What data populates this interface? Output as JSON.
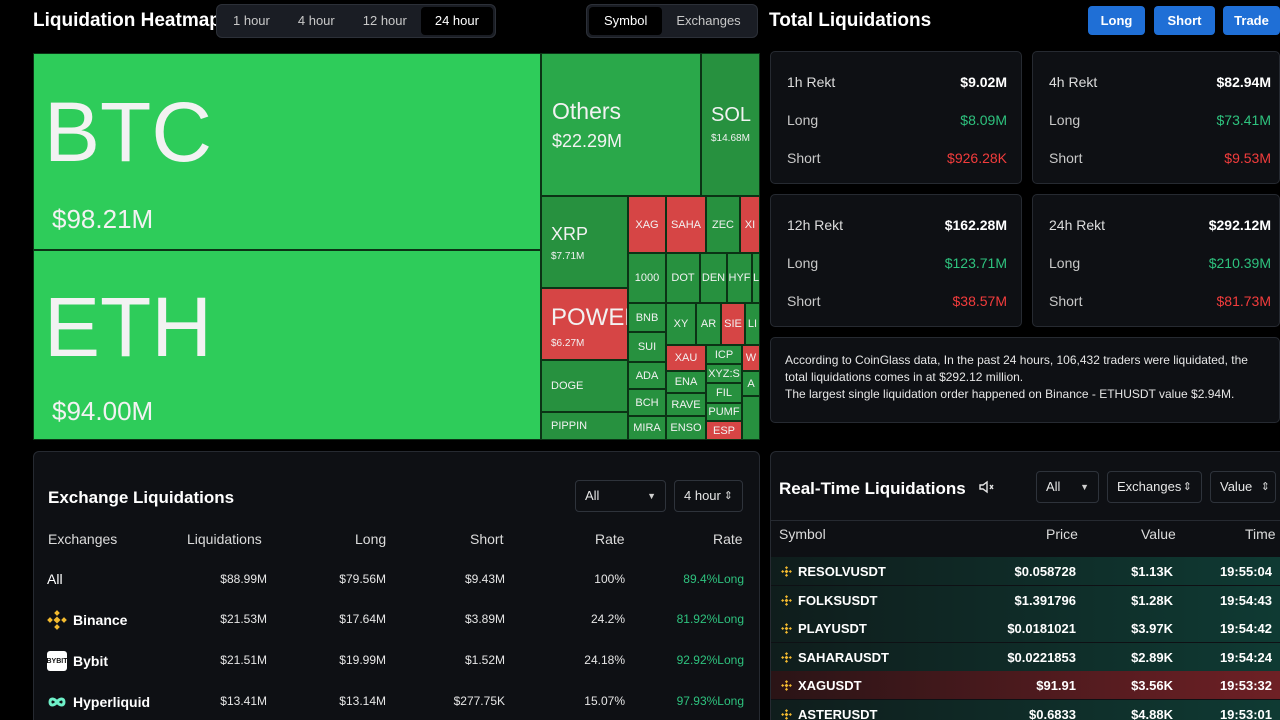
{
  "header": {
    "heatmap_title": "Liquidation Heatmap",
    "time_tabs": [
      "1 hour",
      "4 hour",
      "12 hour",
      "24 hour"
    ],
    "active_time_tab": "24 hour",
    "view_tabs": [
      "Symbol",
      "Exchanges"
    ],
    "active_view_tab": "Symbol",
    "total_title": "Total Liquidations",
    "buttons": [
      "Long",
      "Short",
      "Trade"
    ]
  },
  "heatmap": {
    "btc": {
      "symbol": "BTC",
      "value": "$98.21M"
    },
    "eth": {
      "symbol": "ETH",
      "value": "$94.00M"
    },
    "others": {
      "symbol": "Others",
      "value": "$22.29M"
    },
    "sol": {
      "symbol": "SOL",
      "value": "$14.68M"
    },
    "xrp": {
      "symbol": "XRP",
      "value": "$7.71M"
    },
    "power": {
      "symbol": "POWER",
      "value": "$6.27M"
    },
    "doge": "DOGE",
    "pippin": "PIPPIN",
    "small": [
      "XAG",
      "SAHA",
      "ZEC",
      "XI",
      "1000",
      "DOT",
      "DEN",
      "HYF",
      "L",
      "BNB",
      "XY",
      "AR",
      "SIE",
      "LI",
      "SUI",
      "XAU",
      "ICP",
      "W",
      "ADA",
      "XYZ:S",
      "A",
      "ENA",
      "FIL",
      "BCH",
      "RAVE",
      "PUMF",
      "MIRA",
      "ENSO",
      "ESP"
    ]
  },
  "rekt": [
    {
      "label": "1h Rekt",
      "total": "$9.02M",
      "long_label": "Long",
      "long": "$8.09M",
      "short_label": "Short",
      "short": "$926.28K"
    },
    {
      "label": "4h Rekt",
      "total": "$82.94M",
      "long_label": "Long",
      "long": "$73.41M",
      "short_label": "Short",
      "short": "$9.53M"
    },
    {
      "label": "12h Rekt",
      "total": "$162.28M",
      "long_label": "Long",
      "long": "$123.71M",
      "short_label": "Short",
      "short": "$38.57M"
    },
    {
      "label": "24h Rekt",
      "total": "$292.12M",
      "long_label": "Long",
      "long": "$210.39M",
      "short_label": "Short",
      "short": "$81.73M"
    }
  ],
  "note": {
    "line1": "According to CoinGlass data, In the past 24 hours, 106,432 traders were liquidated, the total liquidations comes in at $292.12 million.",
    "line2": "The largest single liquidation order happened on Binance - ETHUSDT value $2.94M."
  },
  "exchange": {
    "title": "Exchange Liquidations",
    "filter": "All",
    "period": "4 hour",
    "columns": [
      "Exchanges",
      "Liquidations",
      "Long",
      "Short",
      "Rate",
      "Rate"
    ],
    "rows": [
      {
        "name": "All",
        "liq": "$88.99M",
        "long": "$79.56M",
        "short": "$9.43M",
        "rate": "100%",
        "rate2": "89.4%Long"
      },
      {
        "name": "Binance",
        "liq": "$21.53M",
        "long": "$17.64M",
        "short": "$3.89M",
        "rate": "24.2%",
        "rate2": "81.92%Long"
      },
      {
        "name": "Bybit",
        "liq": "$21.51M",
        "long": "$19.99M",
        "short": "$1.52M",
        "rate": "24.18%",
        "rate2": "92.92%Long"
      },
      {
        "name": "Hyperliquid",
        "liq": "$13.41M",
        "long": "$13.14M",
        "short": "$277.75K",
        "rate": "15.07%",
        "rate2": "97.93%Long"
      }
    ],
    "bybit_logo_text": "BYBIT"
  },
  "realtime": {
    "title": "Real-Time Liquidations",
    "filter": "All",
    "exchanges": "Exchanges",
    "value": "Value",
    "columns": [
      "Symbol",
      "Price",
      "Value",
      "Time"
    ],
    "rows": [
      {
        "symbol": "RESOLVUSDT",
        "price": "$0.058728",
        "value": "$1.13K",
        "time": "19:55:04",
        "side": "long"
      },
      {
        "symbol": "FOLKSUSDT",
        "price": "$1.391796",
        "value": "$1.28K",
        "time": "19:54:43",
        "side": "long"
      },
      {
        "symbol": "PLAYUSDT",
        "price": "$0.0181021",
        "value": "$3.97K",
        "time": "19:54:42",
        "side": "long"
      },
      {
        "symbol": "SAHARAUSDT",
        "price": "$0.0221853",
        "value": "$2.89K",
        "time": "19:54:24",
        "side": "long"
      },
      {
        "symbol": "XAGUSDT",
        "price": "$91.91",
        "value": "$3.56K",
        "time": "19:53:32",
        "side": "short"
      },
      {
        "symbol": "ASTERUSDT",
        "price": "$0.6833",
        "value": "$4.88K",
        "time": "19:53:01",
        "side": "long"
      }
    ]
  }
}
